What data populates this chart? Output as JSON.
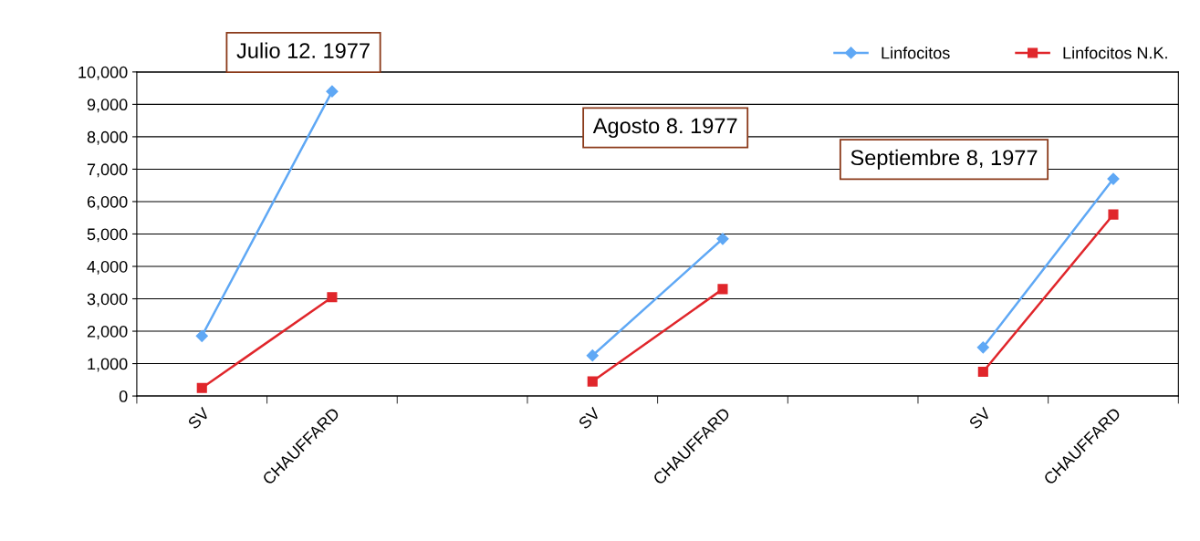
{
  "chart_data": {
    "type": "line",
    "categories": [
      "SV",
      "CHAUFFARD",
      null,
      "SV",
      "CHAUFFARD",
      null,
      "SV",
      "CHAUFFARD"
    ],
    "series": [
      {
        "name": "Linfocitos",
        "color": "#5fa8f5",
        "marker": "diamond",
        "values": [
          1850,
          9400,
          null,
          1250,
          4850,
          null,
          1500,
          6700
        ]
      },
      {
        "name": "Linfocitos N.K.",
        "color": "#e0262b",
        "marker": "square",
        "values": [
          250,
          3050,
          null,
          450,
          3300,
          null,
          750,
          5600
        ]
      }
    ],
    "ylim": [
      0,
      10000
    ],
    "yticks": [
      0,
      {
        "value": 1000,
        "label": "1,000"
      },
      {
        "value": 2000,
        "label": "2,000"
      },
      {
        "value": 3000,
        "label": "3,000"
      },
      {
        "value": 4000,
        "label": "4,000"
      },
      {
        "value": 5000,
        "label": "5,000"
      },
      {
        "value": 6000,
        "label": "6,000"
      },
      {
        "value": 7000,
        "label": "7,000"
      },
      {
        "value": 8000,
        "label": "8,000"
      },
      {
        "value": 9000,
        "label": "9,000"
      },
      {
        "value": 10000,
        "label": "10,000"
      }
    ],
    "grid": "y",
    "legend": "top right",
    "line_style": "solid",
    "annotations": [
      "Julio 12. 1977",
      "Agosto 8. 1977",
      "Septiembre 8, 1977"
    ]
  }
}
